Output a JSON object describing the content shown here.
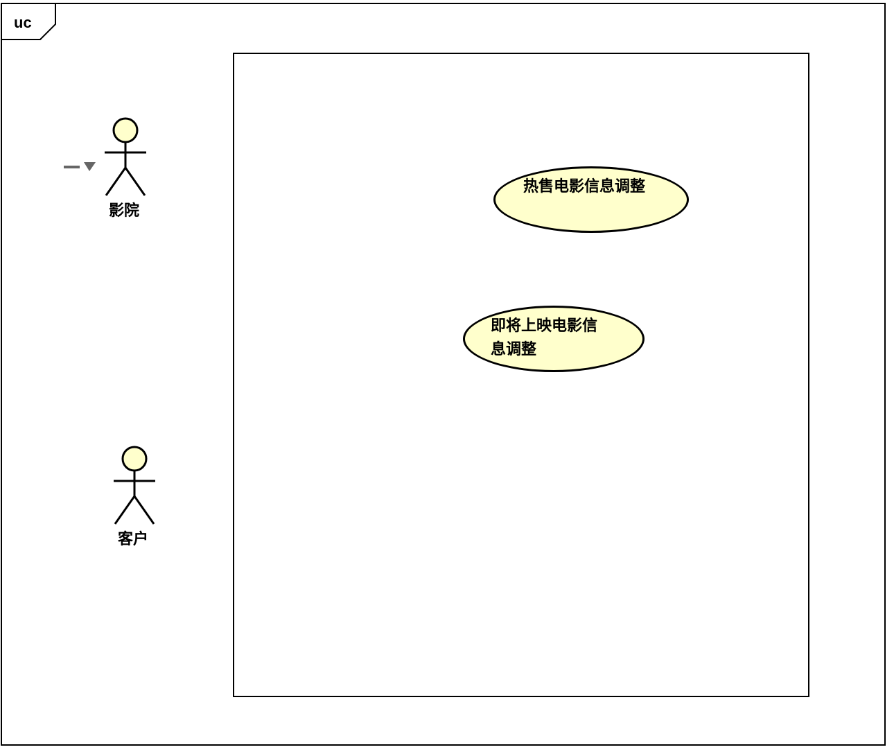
{
  "diagram": {
    "frame_label": "uc",
    "colors": {
      "actor_fill": "#ffffcc",
      "usecase_fill": "#ffffcc",
      "stroke": "#000000",
      "marker": "#666666"
    }
  },
  "actors": [
    {
      "id": "cinema",
      "name": "影院"
    },
    {
      "id": "customer",
      "name": "客户"
    }
  ],
  "use_cases": [
    {
      "id": "hot",
      "lines": [
        "热售电影信息调整"
      ]
    },
    {
      "id": "upcoming",
      "lines": [
        "即将上映电影信",
        "息调整"
      ]
    }
  ]
}
